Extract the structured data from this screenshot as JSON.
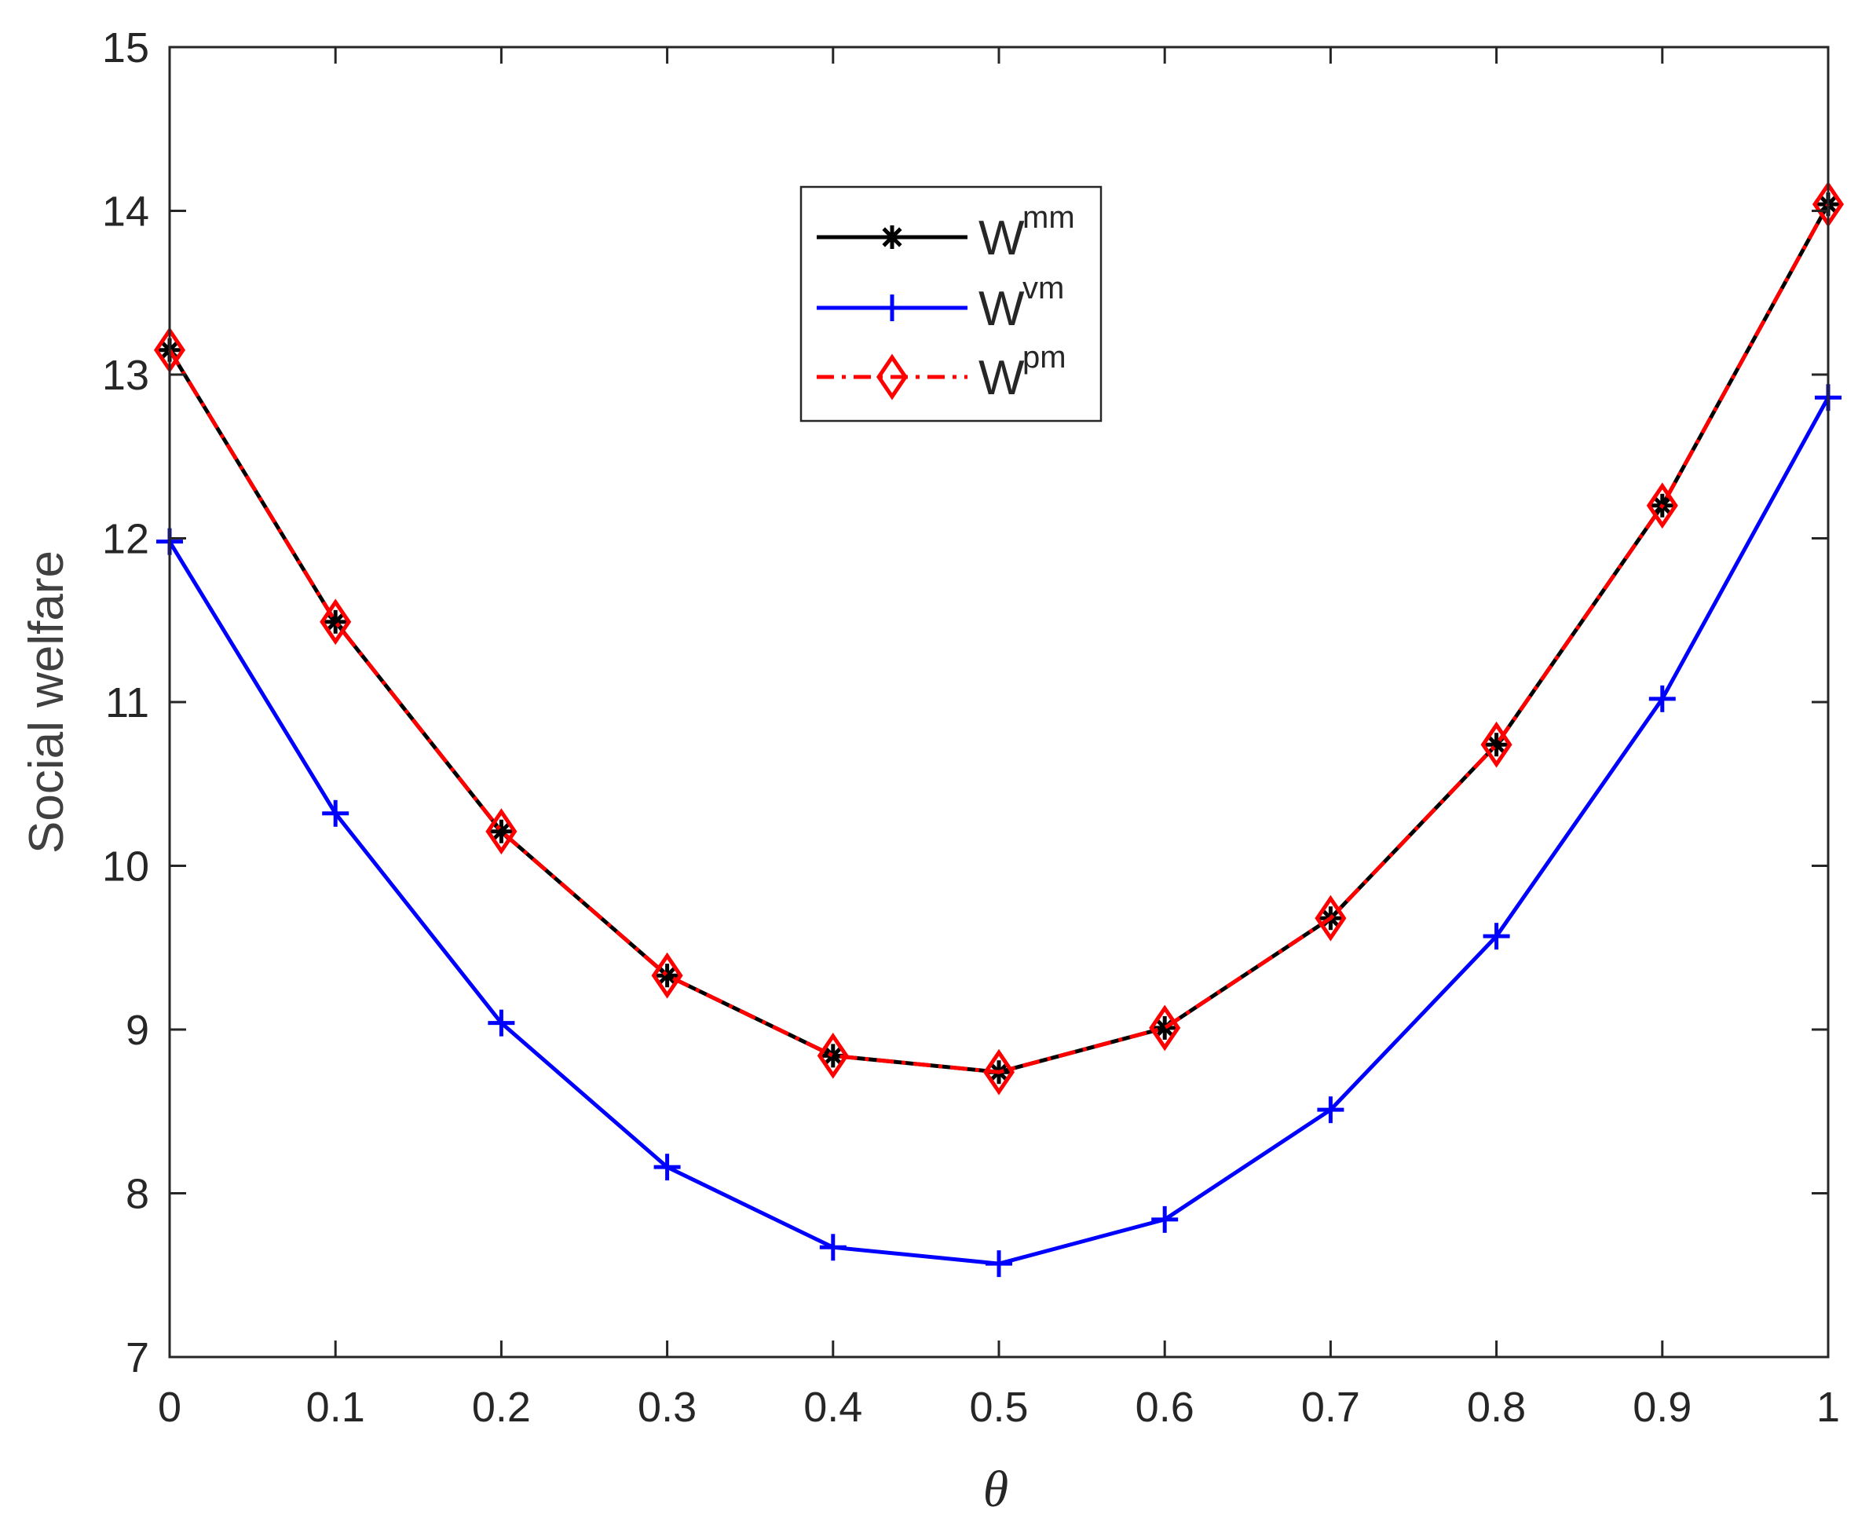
{
  "chart_data": {
    "type": "line",
    "xlabel": "θ",
    "ylabel": "Social welfare",
    "xlim": [
      0,
      1
    ],
    "ylim": [
      7,
      15
    ],
    "x": [
      0,
      0.1,
      0.2,
      0.3,
      0.4,
      0.5,
      0.6,
      0.7,
      0.8,
      0.9,
      1
    ],
    "x_ticks": [
      "0",
      "0.1",
      "0.2",
      "0.3",
      "0.4",
      "0.5",
      "0.6",
      "0.7",
      "0.8",
      "0.9",
      "1"
    ],
    "y_ticks": [
      "7",
      "8",
      "9",
      "10",
      "11",
      "12",
      "13",
      "14",
      "15"
    ],
    "grid": false,
    "legend_position": "top-center",
    "series": [
      {
        "name": "W",
        "sup": "mm",
        "color": "#000000",
        "marker": "asterisk",
        "line": "solid",
        "values": [
          13.15,
          11.49,
          10.21,
          9.33,
          8.84,
          8.74,
          9.01,
          9.68,
          10.74,
          12.2,
          14.04
        ]
      },
      {
        "name": "W",
        "sup": "vm",
        "color": "#0000ff",
        "marker": "plus",
        "line": "solid",
        "values": [
          11.98,
          10.32,
          9.04,
          8.16,
          7.67,
          7.57,
          7.84,
          8.51,
          9.57,
          11.02,
          12.86
        ]
      },
      {
        "name": "W",
        "sup": "pm",
        "color": "#ff0000",
        "marker": "diamond",
        "line": "dashdot",
        "values": [
          13.15,
          11.49,
          10.21,
          9.33,
          8.84,
          8.74,
          9.01,
          9.68,
          10.74,
          12.2,
          14.04
        ]
      }
    ]
  }
}
